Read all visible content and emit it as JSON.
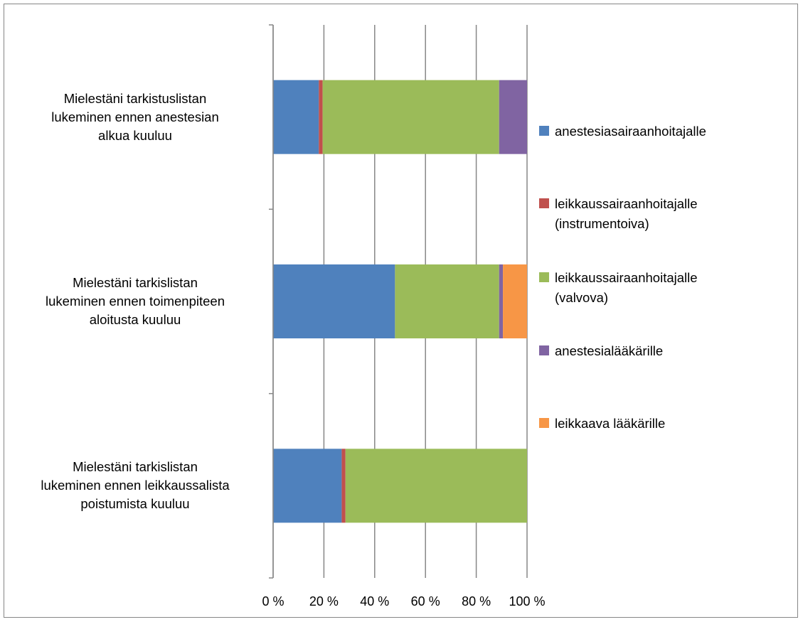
{
  "chart_data": {
    "type": "bar",
    "orientation": "horizontal",
    "stacked": "percent",
    "categories": [
      "Mielestäni tarkistuslistan lukeminen ennen anestesian alkua kuuluu",
      "Mielestäni tarkislistan lukeminen ennen toimenpiteen aloitusta kuuluu",
      "Mielestäni tarkislistan lukeminen ennen leikkaussalista poistumista kuuluu"
    ],
    "category_lines": [
      [
        "Mielestäni tarkistuslistan",
        "lukeminen ennen anestesian",
        "alkua kuuluu"
      ],
      [
        "Mielestäni tarkislistan",
        "lukeminen ennen toimenpiteen",
        "aloitusta kuuluu"
      ],
      [
        "Mielestäni tarkislistan",
        "lukeminen ennen leikkaussalista",
        "poistumista  kuuluu"
      ]
    ],
    "series": [
      {
        "name": "anestesiasairaanhoitajalle",
        "name_lines": [
          "anestesiasairaanhoitajalle"
        ],
        "color": "#4F81BD",
        "values": [
          18,
          48,
          27
        ]
      },
      {
        "name": "leikkaussairaanhoitajalle (instrumentoiva)",
        "name_lines": [
          "leikkaussairaanhoitajalle",
          "(instrumentoiva)"
        ],
        "color": "#C0504D",
        "values": [
          1.5,
          0,
          1.5
        ]
      },
      {
        "name": "leikkaussairaanhoitajalle (valvova)",
        "name_lines": [
          "leikkaussairaanhoitajalle",
          "(valvova)"
        ],
        "color": "#9BBB59",
        "values": [
          69.5,
          41,
          71.5
        ]
      },
      {
        "name": "anestesialääkärille",
        "name_lines": [
          "anestesialääkärille"
        ],
        "color": "#8064A2",
        "values": [
          11,
          1.5,
          0
        ]
      },
      {
        "name": "leikkaava lääkärille",
        "name_lines": [
          "leikkaava lääkärille"
        ],
        "color": "#F79646",
        "values": [
          0,
          9.5,
          0
        ]
      }
    ],
    "x_ticks": [
      "0 %",
      "20 %",
      "40 %",
      "60 %",
      "80 %",
      "100 %"
    ],
    "xlim": [
      0,
      100
    ],
    "grid": "vertical",
    "legend_position": "right"
  }
}
